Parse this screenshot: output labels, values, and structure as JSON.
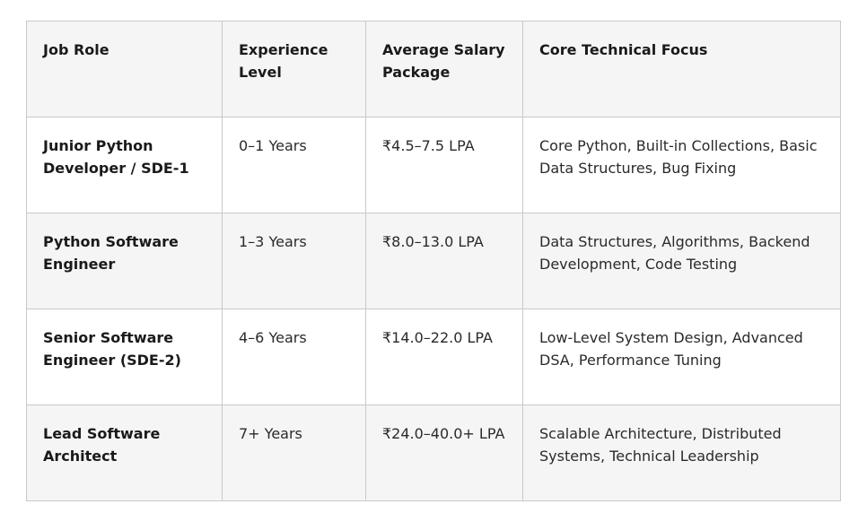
{
  "table": {
    "headers": [
      "Job Role",
      "Experience Level",
      "Average Salary Package",
      "Core Technical Focus"
    ],
    "rows": [
      {
        "role": "Junior Python Developer / SDE-1",
        "experience": "0–1 Years",
        "salary": "₹4.5–7.5 LPA",
        "focus": "Core Python, Built-in Collections, Basic Data Structures, Bug Fixing"
      },
      {
        "role": "Python Software Engineer",
        "experience": "1–3 Years",
        "salary": "₹8.0–13.0 LPA",
        "focus": "Data Structures, Algorithms, Backend Development, Code Testing"
      },
      {
        "role": "Senior Software Engineer (SDE-2)",
        "experience": "4–6 Years",
        "salary": "₹14.0–22.0 LPA",
        "focus": "Low-Level System Design, Advanced DSA, Performance Tuning"
      },
      {
        "role": "Lead Software Architect",
        "experience": "7+ Years",
        "salary": "₹24.0–40.0+ LPA",
        "focus": "Scalable Architecture, Distributed Systems, Technical Leadership"
      }
    ]
  },
  "colors": {
    "header_bg": "#f5f5f5",
    "alt_row_bg": "#f5f5f5",
    "border": "#c9c9c9"
  }
}
